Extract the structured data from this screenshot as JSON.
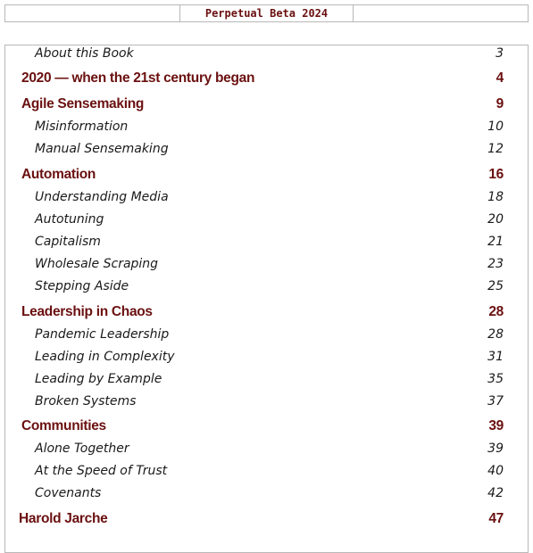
{
  "header": {
    "title": "Perpetual Beta 2024"
  },
  "toc": [
    {
      "type": "section",
      "label": "About this Book",
      "page": "3"
    },
    {
      "type": "chapter",
      "label": "2020 — when the 21st century began",
      "page": "4"
    },
    {
      "type": "chapter",
      "label": "Agile Sensemaking",
      "page": "9"
    },
    {
      "type": "section",
      "label": "Misinformation",
      "page": "10"
    },
    {
      "type": "section",
      "label": "Manual Sensemaking",
      "page": "12"
    },
    {
      "type": "chapter",
      "label": "Automation",
      "page": "16"
    },
    {
      "type": "section",
      "label": "Understanding Media",
      "page": "18"
    },
    {
      "type": "section",
      "label": "Autotuning",
      "page": "20"
    },
    {
      "type": "section",
      "label": "Capitalism",
      "page": "21"
    },
    {
      "type": "section",
      "label": "Wholesale Scraping",
      "page": "23"
    },
    {
      "type": "section",
      "label": "Stepping Aside",
      "page": "25"
    },
    {
      "type": "chapter",
      "label": "Leadership in Chaos",
      "page": "28"
    },
    {
      "type": "section",
      "label": "Pandemic Leadership",
      "page": "28"
    },
    {
      "type": "section",
      "label": "Leading in Complexity",
      "page": "31"
    },
    {
      "type": "section",
      "label": "Leading by Example",
      "page": "35"
    },
    {
      "type": "section",
      "label": "Broken Systems",
      "page": "37"
    },
    {
      "type": "chapter",
      "label": "Communities",
      "page": "39"
    },
    {
      "type": "section",
      "label": "Alone Together",
      "page": "39"
    },
    {
      "type": "section",
      "label": "At the Speed of Trust",
      "page": "40"
    },
    {
      "type": "section",
      "label": "Covenants",
      "page": "42"
    },
    {
      "type": "author",
      "label": "Harold Jarche",
      "page": "47"
    }
  ]
}
